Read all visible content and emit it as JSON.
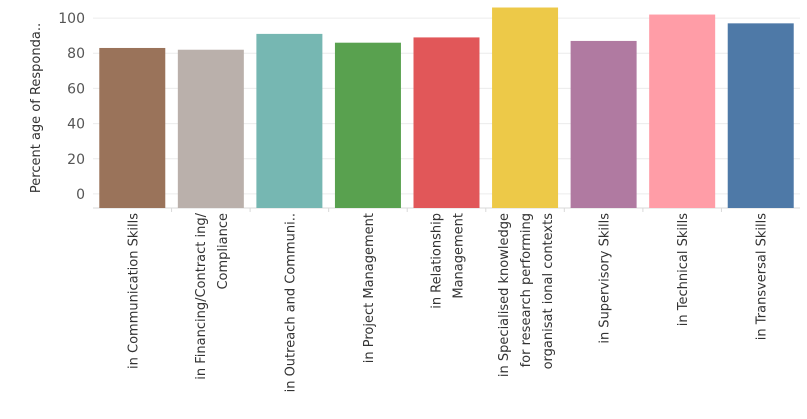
{
  "chart_data": {
    "type": "bar",
    "ylabel": "Percent age of Responda..",
    "categories": [
      [
        "in Communication Skills"
      ],
      [
        "in Financing/Contract ing/",
        "Compliance"
      ],
      [
        "in Outreach and Communi.."
      ],
      [
        "in Project Management"
      ],
      [
        "in Relationship",
        "Management"
      ],
      [
        "in Specialised knowledge",
        "for research performing",
        "organisat ional contexts"
      ],
      [
        "in Supervisory Skills"
      ],
      [
        "in Technical Skills"
      ],
      [
        "in Transversal Skills"
      ]
    ],
    "values": [
      83,
      82,
      91,
      86,
      89,
      106,
      87,
      102,
      97
    ],
    "colors": [
      "#9a735a",
      "#bab0ab",
      "#76b7b2",
      "#59a14f",
      "#e15759",
      "#edc948",
      "#b07aa1",
      "#ff9da7",
      "#4e79a7"
    ],
    "yticks": [
      0,
      20,
      40,
      60,
      80,
      100
    ],
    "ylim": [
      -8,
      108
    ],
    "grid": true
  }
}
